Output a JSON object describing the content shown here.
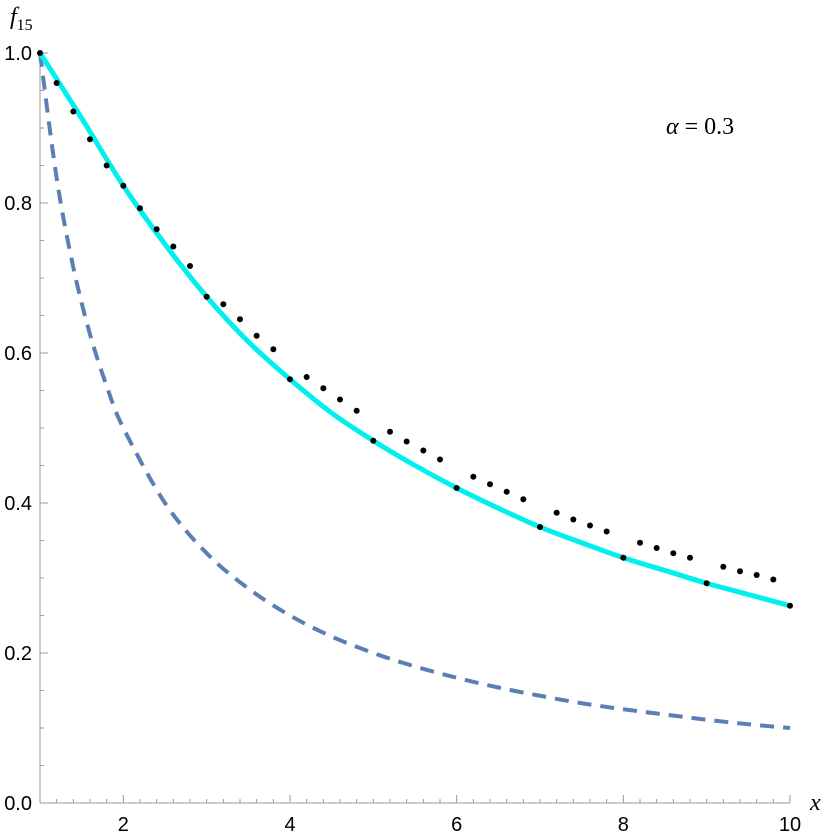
{
  "chart_data": {
    "type": "line",
    "xlabel": "x",
    "ylabel": "f",
    "ylabel_sub": "15",
    "annotation": {
      "symbol": "α",
      "text": " = 0.3"
    },
    "xlim": [
      1,
      10
    ],
    "ylim": [
      0,
      1
    ],
    "x_ticks": [
      "2",
      "4",
      "6",
      "8",
      "10"
    ],
    "y_ticks": [
      "0.0",
      "0.2",
      "0.4",
      "0.6",
      "0.8",
      "1.0"
    ],
    "grid": false,
    "colors": {
      "solid": "#00f0f0",
      "dashed": "#5b7fb5",
      "dots": "#000000"
    },
    "series": [
      {
        "style": "solid",
        "x": [
          1,
          1.5,
          2,
          2.5,
          3,
          3.5,
          4,
          4.5,
          5,
          5.5,
          6,
          6.5,
          7,
          7.5,
          8,
          8.5,
          9,
          9.5,
          10
        ],
        "y": [
          1.0,
          0.913,
          0.823,
          0.745,
          0.675,
          0.615,
          0.565,
          0.52,
          0.483,
          0.45,
          0.42,
          0.393,
          0.368,
          0.347,
          0.327,
          0.31,
          0.293,
          0.278,
          0.263
        ]
      },
      {
        "style": "dots",
        "x": [
          1,
          1.2,
          1.4,
          1.6,
          1.8,
          2,
          2.2,
          2.4,
          2.6,
          2.8,
          3,
          3.2,
          3.4,
          3.6,
          3.8,
          4,
          4.2,
          4.4,
          4.6,
          4.8,
          5,
          5.2,
          5.4,
          5.6,
          5.8,
          6,
          6.2,
          6.4,
          6.6,
          6.8,
          7,
          7.2,
          7.4,
          7.6,
          7.8,
          8,
          8.2,
          8.4,
          8.6,
          8.8,
          9,
          9.2,
          9.4,
          9.6,
          9.8,
          10
        ],
        "y": [
          1.0,
          0.96,
          0.922,
          0.885,
          0.85,
          0.823,
          0.793,
          0.765,
          0.742,
          0.716,
          0.675,
          0.665,
          0.645,
          0.623,
          0.605,
          0.565,
          0.568,
          0.553,
          0.538,
          0.523,
          0.483,
          0.495,
          0.482,
          0.47,
          0.458,
          0.42,
          0.435,
          0.425,
          0.415,
          0.405,
          0.368,
          0.387,
          0.378,
          0.37,
          0.362,
          0.327,
          0.347,
          0.34,
          0.333,
          0.327,
          0.293,
          0.315,
          0.309,
          0.304,
          0.298,
          0.263
        ]
      },
      {
        "style": "dashed",
        "x": [
          1,
          1.2,
          1.4,
          1.6,
          1.8,
          2,
          2.5,
          3,
          3.5,
          4,
          4.5,
          5,
          5.5,
          6,
          6.5,
          7,
          7.5,
          8,
          8.5,
          9,
          9.5,
          10
        ],
        "y": [
          1.0,
          0.833,
          0.714,
          0.625,
          0.556,
          0.5,
          0.4,
          0.333,
          0.286,
          0.25,
          0.222,
          0.2,
          0.182,
          0.167,
          0.154,
          0.143,
          0.133,
          0.125,
          0.118,
          0.111,
          0.105,
          0.1
        ]
      }
    ]
  }
}
